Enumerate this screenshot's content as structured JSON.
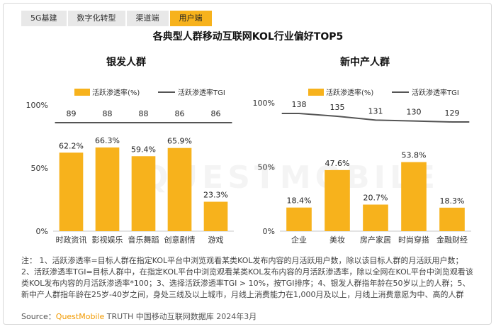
{
  "tabs": [
    "5G基建",
    "数字化转型",
    "渠道端",
    "用户端"
  ],
  "active_tab": 3,
  "title": "各典型人群移动互联网KOL行业偏好TOP5",
  "watermark": "QUESTMOBILE",
  "colors": {
    "bar": "#f7b21c",
    "line": "#555555",
    "accent": "#f29a00"
  },
  "chart_data": [
    {
      "type": "bar",
      "title": "银发人群",
      "categories": [
        "时政资讯",
        "影视娱乐",
        "音乐舞蹈",
        "创意剧情",
        "游戏"
      ],
      "series": [
        {
          "name": "活跃渗透率(%)",
          "values": [
            62.2,
            66.3,
            59.4,
            65.9,
            23.3
          ],
          "labels": [
            "62.2%",
            "66.3%",
            "59.4%",
            "65.9%",
            "23.3%"
          ]
        },
        {
          "name": "活跃渗透率TGI",
          "values": [
            89,
            88,
            88,
            86,
            86
          ]
        }
      ],
      "y_ticks": [
        "100%",
        "50%",
        "0%"
      ],
      "ylim": [
        0,
        100
      ],
      "legend": "top"
    },
    {
      "type": "bar",
      "title": "新中产人群",
      "categories": [
        "企业",
        "美妆",
        "房产家居",
        "时尚穿搭",
        "金融财经"
      ],
      "series": [
        {
          "name": "活跃渗透率(%)",
          "values": [
            18.4,
            47.6,
            20.7,
            53.8,
            18.3
          ],
          "labels": [
            "18.4%",
            "47.6%",
            "20.7%",
            "53.8%",
            "18.3%"
          ]
        },
        {
          "name": "活跃渗透率TGI",
          "values": [
            138,
            135,
            131,
            130,
            129
          ]
        }
      ],
      "y_ticks": [
        "100%",
        "50%",
        "0%"
      ],
      "ylim": [
        0,
        100
      ],
      "legend": "top"
    }
  ],
  "note": "注： 1、活跃渗透率=目标人群在指定KOL平台中浏览观看某类KOL发布内容的月活跃用户数，除以该目标人群的月活跃用户数；2、活跃渗透率TGI=目标人群中，在指定KOL平台中浏览观看某类KOL发布内容的月活跃渗透率，除以全网在KOL平台中浏览观看该类KOL发布内容的月活跃渗透率*100；3、选择活跃渗透率TGI > 10%，按TGI排序；4、银发人群指年龄在50岁以上的人群；5、新中产人群指年龄在25岁-40岁之间，身处三线及以上城市，月线上消费能力在1,000月及以上，月线上消费意愿为中、高的人群",
  "source": {
    "prefix": "Source：",
    "brand": "QuestMobile",
    "rest": " TRUTH 中国移动互联网数据库 2024年3月"
  }
}
